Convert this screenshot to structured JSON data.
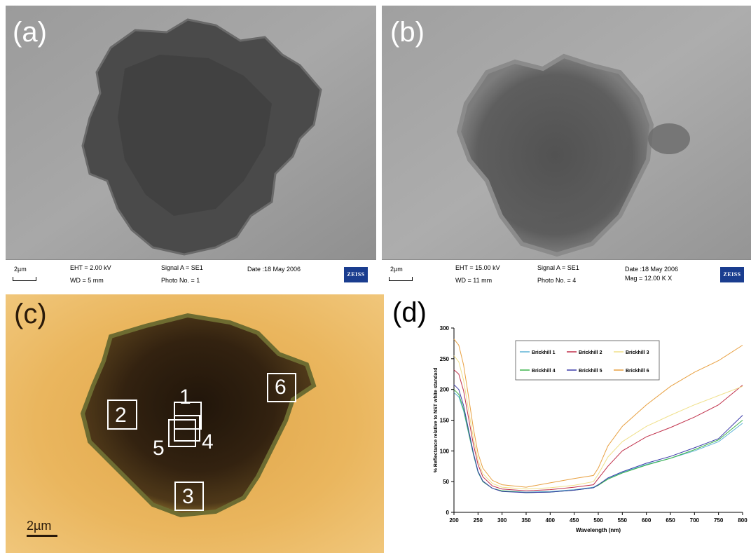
{
  "panels": {
    "a": {
      "label": "(a)",
      "scale_text": "2µm",
      "eht": "EHT =  2.00 kV",
      "wd": "WD =    5 mm",
      "signal": "Signal A = SE1",
      "photo": "Photo No. = 1",
      "date": "Date :18 May 2006",
      "logo": "ZEISS"
    },
    "b": {
      "label": "(b)",
      "scale_text": "2µm",
      "eht": "EHT = 15.00 kV",
      "wd": "WD =   11 mm",
      "signal": "Signal A = SE1",
      "photo": "Photo No. = 4",
      "date": "Date :18 May 2006",
      "mag": "Mag =  12.00 K X",
      "logo": "ZEISS"
    },
    "c": {
      "label": "(c)",
      "scale_text": "2µm",
      "regions": [
        "1",
        "2",
        "3",
        "4",
        "5",
        "6"
      ]
    },
    "d": {
      "label": "(d)"
    }
  },
  "chart_data": {
    "type": "line",
    "title": "",
    "xlabel": "Wavelength (nm)",
    "ylabel": "% Reflectance relative to NST white standard",
    "xlim": [
      200,
      800
    ],
    "ylim": [
      0,
      300
    ],
    "xticks": [
      200,
      250,
      300,
      350,
      400,
      450,
      500,
      550,
      600,
      650,
      700,
      750,
      800
    ],
    "yticks": [
      0,
      50,
      100,
      150,
      200,
      250,
      300
    ],
    "legend_position": "top-center",
    "x": [
      200,
      210,
      220,
      230,
      240,
      250,
      260,
      280,
      300,
      350,
      400,
      450,
      490,
      500,
      520,
      550,
      600,
      650,
      700,
      750,
      800
    ],
    "series": [
      {
        "name": "Brickhill 1",
        "color": "#5fb3d6",
        "values": [
          195,
          188,
          165,
          130,
          95,
          65,
          50,
          39,
          35,
          33,
          34,
          37,
          41,
          45,
          55,
          65,
          78,
          88,
          100,
          115,
          145
        ]
      },
      {
        "name": "Brickhill 2",
        "color": "#c0304a",
        "values": [
          232,
          225,
          198,
          155,
          112,
          78,
          58,
          43,
          38,
          35,
          37,
          41,
          45,
          55,
          75,
          100,
          123,
          138,
          155,
          175,
          207
        ]
      },
      {
        "name": "Brickhill 3",
        "color": "#f0e08a",
        "values": [
          255,
          245,
          215,
          168,
          122,
          85,
          63,
          47,
          41,
          38,
          40,
          44,
          50,
          62,
          90,
          115,
          140,
          158,
          175,
          190,
          205
        ]
      },
      {
        "name": "Brickhill 4",
        "color": "#3cb44a",
        "values": [
          200,
          192,
          168,
          132,
          96,
          66,
          50,
          39,
          35,
          32,
          33,
          36,
          40,
          44,
          54,
          64,
          77,
          88,
          102,
          118,
          150
        ]
      },
      {
        "name": "Brickhill 5",
        "color": "#3a3aa8",
        "values": [
          208,
          200,
          174,
          136,
          98,
          67,
          51,
          39,
          34,
          32,
          33,
          36,
          40,
          45,
          56,
          66,
          80,
          91,
          105,
          120,
          158
        ]
      },
      {
        "name": "Brickhill 6",
        "color": "#e8a040",
        "values": [
          282,
          272,
          240,
          190,
          138,
          96,
          72,
          52,
          45,
          41,
          48,
          55,
          60,
          72,
          108,
          140,
          175,
          205,
          228,
          247,
          272
        ]
      }
    ]
  }
}
